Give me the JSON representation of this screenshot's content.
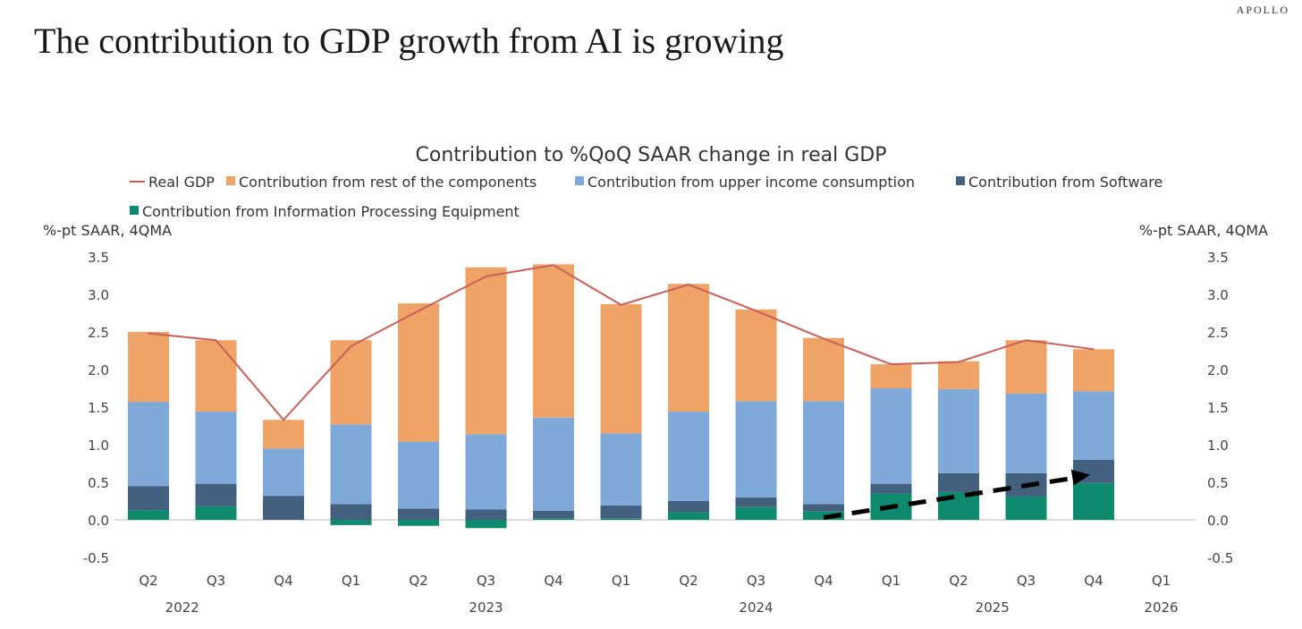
{
  "brand": "APOLLO",
  "headline": "The contribution to GDP growth from AI is growing",
  "chart_data": {
    "type": "bar",
    "title": "Contribution to %QoQ SAAR change in real GDP",
    "ylabel_left": "%-pt SAAR, 4QMA",
    "ylabel_right": "%-pt SAAR, 4QMA",
    "ylim": [
      -0.5,
      3.5
    ],
    "yticks": [
      "-0.5",
      "0.0",
      "0.5",
      "1.0",
      "1.5",
      "2.0",
      "2.5",
      "3.0",
      "3.5"
    ],
    "categories": [
      "Q2",
      "Q3",
      "Q4",
      "Q1",
      "Q2",
      "Q3",
      "Q4",
      "Q1",
      "Q2",
      "Q3",
      "Q4",
      "Q1",
      "Q2",
      "Q3",
      "Q4",
      "Q1"
    ],
    "years": [
      {
        "label": "2022",
        "index": 0.5
      },
      {
        "label": "2023",
        "index": 5
      },
      {
        "label": "2024",
        "index": 9
      },
      {
        "label": "2025",
        "index": 12.5
      },
      {
        "label": "2026",
        "index": 15
      }
    ],
    "series": [
      {
        "name": "Contribution from Information Processing Equipment",
        "color": "#0E8A6E",
        "values": [
          0.13,
          0.18,
          0,
          -0.07,
          -0.08,
          -0.11,
          0.02,
          0.02,
          0.1,
          0.17,
          0.11,
          0.35,
          0.37,
          0.31,
          0.49,
          null
        ]
      },
      {
        "name": "Contribution from Software",
        "color": "#44607F",
        "values": [
          0.32,
          0.3,
          0.32,
          0.21,
          0.15,
          0.14,
          0.1,
          0.17,
          0.15,
          0.13,
          0.1,
          0.13,
          0.25,
          0.31,
          0.31,
          null
        ]
      },
      {
        "name": "Contribution from upper income consumption",
        "color": "#7FA9D8",
        "values": [
          1.12,
          0.96,
          0.63,
          1.06,
          0.89,
          1.0,
          1.24,
          0.96,
          1.19,
          1.28,
          1.37,
          1.27,
          1.12,
          1.06,
          0.91,
          null
        ]
      },
      {
        "name": "Contribution from rest of the components",
        "color": "#EFA366",
        "values": [
          0.93,
          0.95,
          0.38,
          1.12,
          1.84,
          2.22,
          2.04,
          1.72,
          1.7,
          1.22,
          0.84,
          0.32,
          0.37,
          0.71,
          0.56,
          null
        ]
      }
    ],
    "line": {
      "name": "Real GDP",
      "color": "#C8605A",
      "values": [
        2.48,
        2.39,
        1.33,
        2.31,
        2.78,
        3.24,
        3.39,
        2.86,
        3.13,
        2.78,
        2.41,
        2.07,
        2.1,
        2.39,
        2.27,
        null
      ]
    },
    "legend": [
      "Real GDP",
      "Contribution from rest of the components",
      "Contribution from upper income consumption",
      "Contribution from Software",
      "Contribution from Information Processing Equipment"
    ],
    "annotation": {
      "type": "dashed-arrow",
      "from_index": 10,
      "to_index": 14,
      "from_value": 0.03,
      "to_value": 0.6
    }
  }
}
